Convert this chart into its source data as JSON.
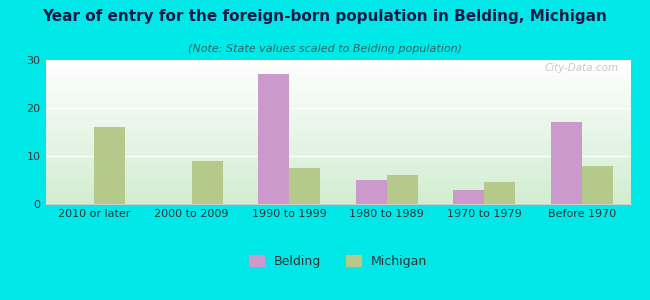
{
  "title": "Year of entry for the foreign-born population in Belding, Michigan",
  "subtitle": "(Note: State values scaled to Belding population)",
  "categories": [
    "2010 or later",
    "2000 to 2009",
    "1990 to 1999",
    "1980 to 1989",
    "1970 to 1979",
    "Before 1970"
  ],
  "belding_values": [
    0,
    0,
    27,
    5,
    3,
    17
  ],
  "michigan_values": [
    16,
    9,
    7.5,
    6,
    4.5,
    8
  ],
  "belding_color": "#cc99cc",
  "michigan_color": "#b5c98a",
  "background_color": "#00e8e8",
  "ylim": [
    0,
    30
  ],
  "yticks": [
    0,
    10,
    20,
    30
  ],
  "bar_width": 0.32,
  "title_fontsize": 11,
  "subtitle_fontsize": 8,
  "tick_fontsize": 8,
  "legend_fontsize": 9,
  "watermark": "City-Data.com"
}
